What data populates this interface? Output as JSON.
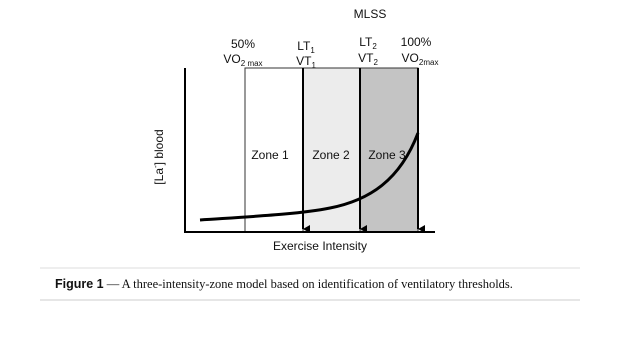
{
  "figure": {
    "markers": [
      {
        "top": "50%",
        "bottom": {
          "main": "VO",
          "sub": "2 max"
        }
      },
      {
        "top": {
          "main": "LT",
          "sub": "1"
        },
        "bottom": {
          "main": "VT",
          "sub": "1"
        }
      },
      {
        "above": "MLSS",
        "top": {
          "main": "LT",
          "sub": "2"
        },
        "bottom": {
          "main": "VT",
          "sub": "2"
        }
      },
      {
        "top": "100%",
        "bottom": {
          "main": "VO",
          "sub": "2max"
        }
      }
    ],
    "zones": [
      "Zone 1",
      "Zone 2",
      "Zone 3"
    ],
    "y_label": {
      "pre": "[La",
      "sup": "-",
      "post": "] blood"
    },
    "x_label": "Exercise Intensity"
  },
  "caption": {
    "label": "Figure 1",
    "text": " — A three-intensity-zone model based on identification of ventilatory thresholds."
  }
}
